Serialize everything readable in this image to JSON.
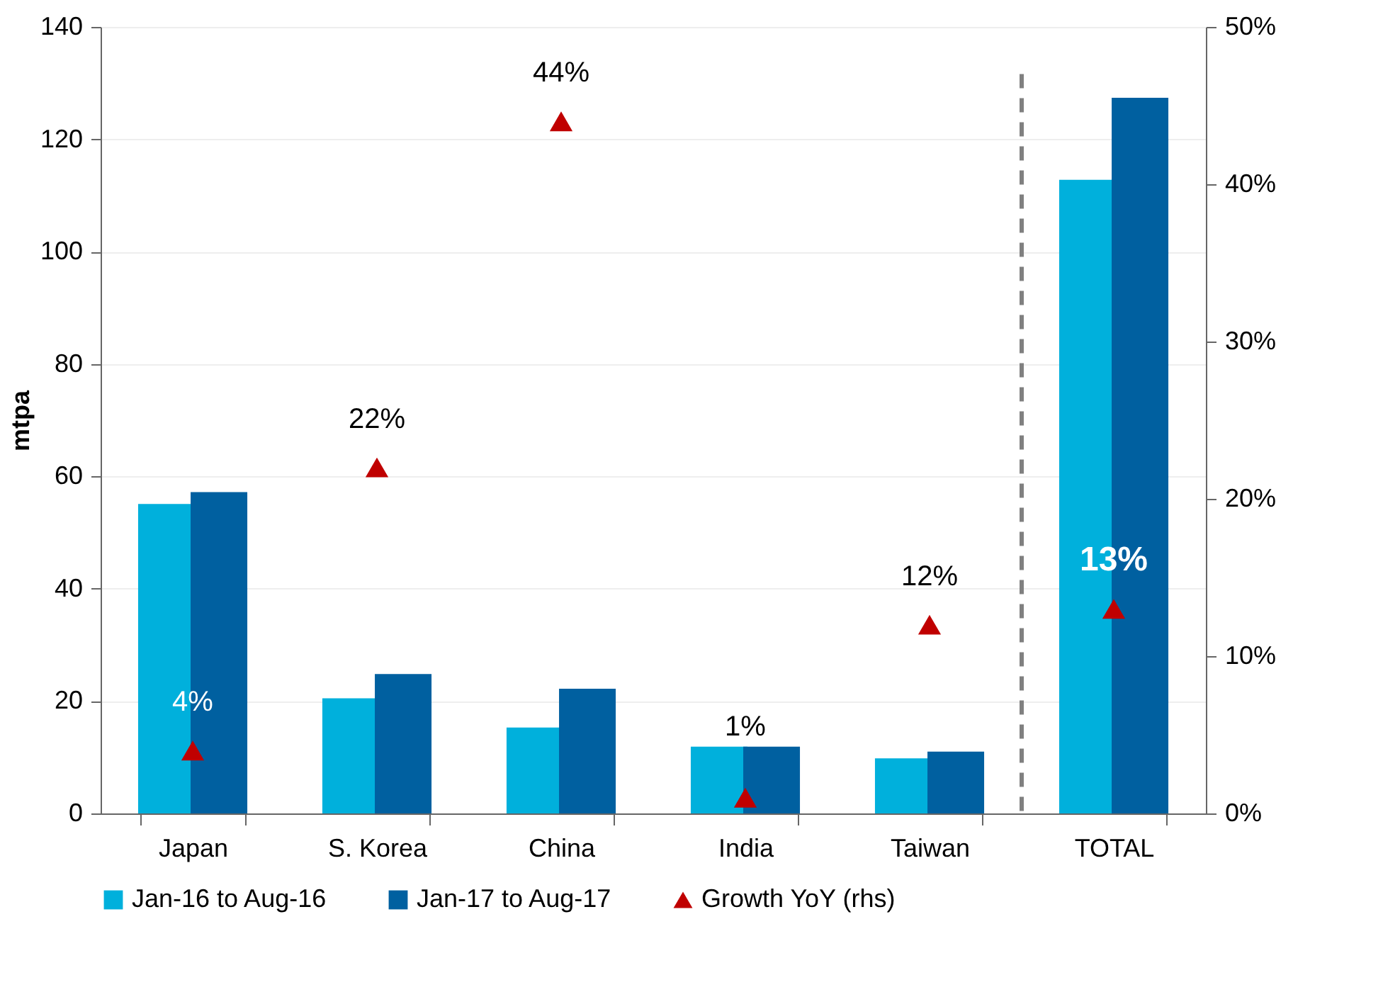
{
  "chart_data": {
    "type": "bar",
    "categories": [
      "Japan",
      "S. Korea",
      "China",
      "India",
      "Taiwan",
      "TOTAL"
    ],
    "ylabel": "mtpa",
    "ylim": [
      0,
      140
    ],
    "yticks": [
      0,
      20,
      40,
      60,
      80,
      100,
      120,
      140
    ],
    "y2lim": [
      0,
      50
    ],
    "y2ticks": [
      {
        "value": 0,
        "label": "0%"
      },
      {
        "value": 10,
        "label": "10%"
      },
      {
        "value": 20,
        "label": "20%"
      },
      {
        "value": 30,
        "label": "30%"
      },
      {
        "value": 40,
        "label": "40%"
      },
      {
        "value": 50,
        "label": "50%"
      }
    ],
    "grid": "y",
    "legend": "bottom",
    "ref_lines": [
      {
        "axis": "x",
        "value": "TOTAL",
        "color": "#808080",
        "line_style": "dashed"
      }
    ],
    "series": [
      {
        "name": "Jan-16 to Aug-16",
        "color": "#00b0dc",
        "values": [
          55.1,
          20.5,
          15.3,
          11.9,
          9.8,
          112.8
        ]
      },
      {
        "name": "Jan-17 to Aug-17",
        "color": "#0060a0",
        "values": [
          57.2,
          24.8,
          22.2,
          11.9,
          11.0,
          127.4
        ]
      },
      {
        "name": "Growth YoY (rhs)",
        "type": "scatter",
        "axis": "y2",
        "marker": "triangle",
        "color": "#c00000",
        "values": [
          4,
          22,
          44,
          1,
          12,
          13
        ],
        "value_labels": [
          "4%",
          "22%",
          "44%",
          "1%",
          "12%",
          "13%"
        ]
      }
    ]
  }
}
